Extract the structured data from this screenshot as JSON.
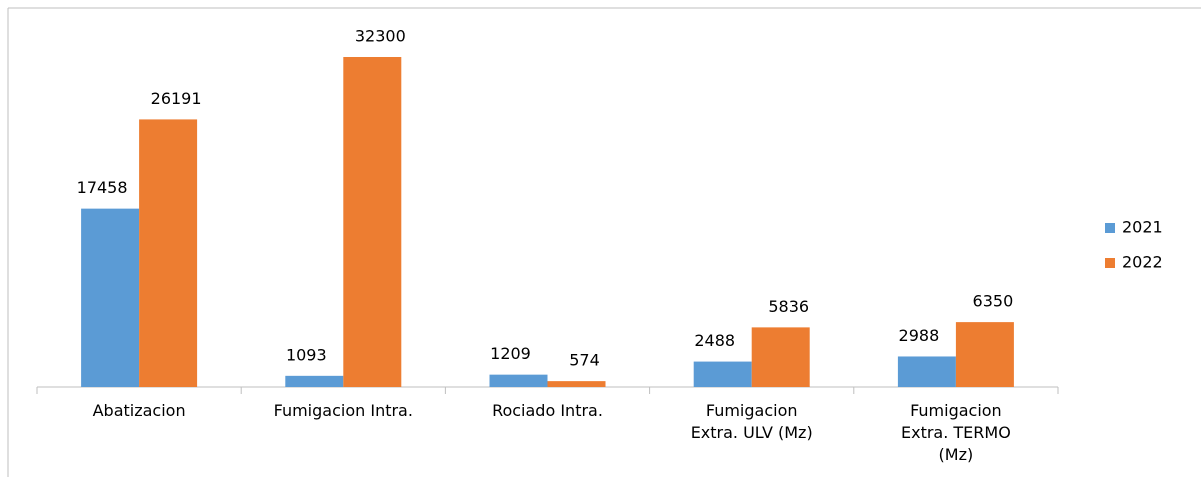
{
  "chart_data": {
    "type": "bar",
    "categories": [
      "Abatizacion",
      "Fumigacion Intra.",
      "Rociado Intra.",
      "Fumigacion\nExtra. ULV (Mz)",
      "Fumigacion\nExtra. TERMO\n(Mz)"
    ],
    "series": [
      {
        "name": "2021",
        "color": "#5b9bd5",
        "values": [
          17458,
          1093,
          1209,
          2488,
          2988
        ]
      },
      {
        "name": "2022",
        "color": "#ed7d31",
        "values": [
          26191,
          32300,
          574,
          5836,
          6350
        ]
      }
    ],
    "legend": "right"
  }
}
